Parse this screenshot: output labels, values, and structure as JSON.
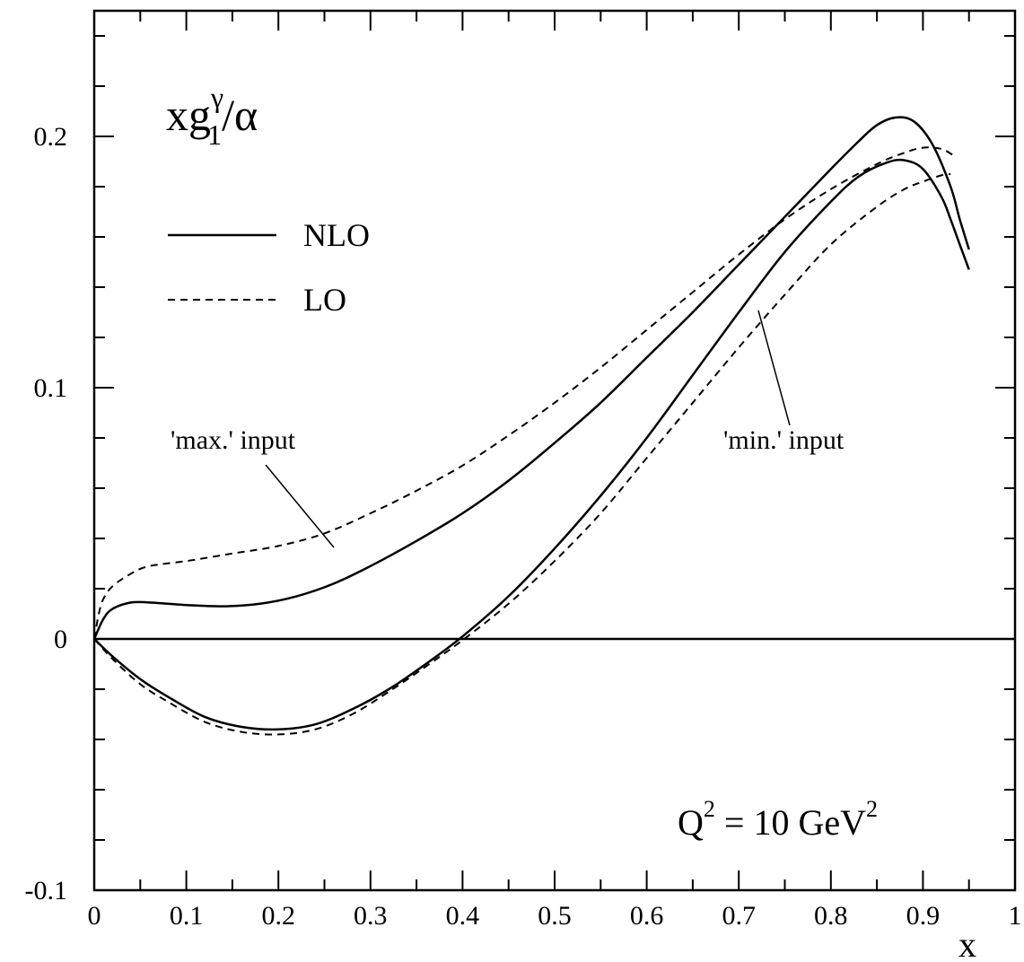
{
  "chart_data": {
    "type": "line",
    "title": "",
    "ylabel": {
      "main": "xg",
      "sup": "γ",
      "sub": "1",
      "tail": "/α"
    },
    "xlabel": "x",
    "xlim": [
      0,
      1
    ],
    "ylim": [
      -0.1,
      0.25
    ],
    "x_tick_labels": [
      "0",
      "0.1",
      "0.2",
      "0.3",
      "0.4",
      "0.5",
      "0.6",
      "0.7",
      "0.8",
      "0.9",
      "1"
    ],
    "x_tick_values": [
      0,
      0.1,
      0.2,
      0.3,
      0.4,
      0.5,
      0.6,
      0.7,
      0.8,
      0.9,
      1.0
    ],
    "y_tick_labels": [
      "-0.1",
      "0",
      "0.1",
      "0.2"
    ],
    "y_tick_values": [
      -0.1,
      0,
      0.1,
      0.2
    ],
    "grid": false,
    "legend": {
      "position": "top-left",
      "entries": [
        {
          "label": "NLO",
          "style": "solid"
        },
        {
          "label": "LO",
          "style": "dashed"
        }
      ]
    },
    "annotations": {
      "max_input": "'max.' input",
      "min_input": "'min.' input",
      "q2": {
        "main": "Q",
        "sup1": "2",
        "mid": " = 10 GeV",
        "sup2": "2"
      }
    },
    "series": [
      {
        "group": "max",
        "style": "solid",
        "points": [
          [
            0,
            0
          ],
          [
            0.01,
            0.008
          ],
          [
            0.02,
            0.012
          ],
          [
            0.04,
            0.0145
          ],
          [
            0.06,
            0.0145
          ],
          [
            0.1,
            0.0135
          ],
          [
            0.14,
            0.013
          ],
          [
            0.18,
            0.014
          ],
          [
            0.22,
            0.017
          ],
          [
            0.26,
            0.022
          ],
          [
            0.3,
            0.029
          ],
          [
            0.35,
            0.039
          ],
          [
            0.4,
            0.05
          ],
          [
            0.45,
            0.063
          ],
          [
            0.5,
            0.078
          ],
          [
            0.55,
            0.094
          ],
          [
            0.6,
            0.112
          ],
          [
            0.65,
            0.13
          ],
          [
            0.7,
            0.149
          ],
          [
            0.75,
            0.168
          ],
          [
            0.8,
            0.187
          ],
          [
            0.83,
            0.198
          ],
          [
            0.85,
            0.2045
          ],
          [
            0.87,
            0.2075
          ],
          [
            0.89,
            0.206
          ],
          [
            0.91,
            0.197
          ],
          [
            0.93,
            0.18
          ],
          [
            0.94,
            0.167
          ],
          [
            0.95,
            0.155
          ]
        ]
      },
      {
        "group": "max",
        "style": "dashed",
        "points": [
          [
            0,
            0
          ],
          [
            0.005,
            0.01
          ],
          [
            0.01,
            0.016
          ],
          [
            0.02,
            0.021
          ],
          [
            0.04,
            0.026
          ],
          [
            0.06,
            0.029
          ],
          [
            0.1,
            0.031
          ],
          [
            0.15,
            0.034
          ],
          [
            0.2,
            0.037
          ],
          [
            0.25,
            0.042
          ],
          [
            0.3,
            0.05
          ],
          [
            0.35,
            0.059
          ],
          [
            0.4,
            0.069
          ],
          [
            0.45,
            0.081
          ],
          [
            0.5,
            0.094
          ],
          [
            0.55,
            0.108
          ],
          [
            0.6,
            0.123
          ],
          [
            0.65,
            0.138
          ],
          [
            0.7,
            0.153
          ],
          [
            0.75,
            0.167
          ],
          [
            0.8,
            0.179
          ],
          [
            0.85,
            0.189
          ],
          [
            0.88,
            0.1935
          ],
          [
            0.9,
            0.1955
          ],
          [
            0.92,
            0.195
          ],
          [
            0.935,
            0.192
          ]
        ]
      },
      {
        "group": "min",
        "style": "solid",
        "points": [
          [
            0,
            0
          ],
          [
            0.02,
            -0.007
          ],
          [
            0.05,
            -0.016
          ],
          [
            0.08,
            -0.023
          ],
          [
            0.12,
            -0.031
          ],
          [
            0.16,
            -0.035
          ],
          [
            0.2,
            -0.036
          ],
          [
            0.24,
            -0.034
          ],
          [
            0.28,
            -0.028
          ],
          [
            0.32,
            -0.02
          ],
          [
            0.36,
            -0.01
          ],
          [
            0.4,
            0.001
          ],
          [
            0.45,
            0.017
          ],
          [
            0.5,
            0.036
          ],
          [
            0.55,
            0.057
          ],
          [
            0.6,
            0.08
          ],
          [
            0.65,
            0.105
          ],
          [
            0.7,
            0.13
          ],
          [
            0.75,
            0.154
          ],
          [
            0.8,
            0.174
          ],
          [
            0.83,
            0.184
          ],
          [
            0.86,
            0.1895
          ],
          [
            0.88,
            0.1905
          ],
          [
            0.9,
            0.187
          ],
          [
            0.92,
            0.176
          ],
          [
            0.93,
            0.167
          ],
          [
            0.94,
            0.157
          ],
          [
            0.95,
            0.147
          ]
        ]
      },
      {
        "group": "min",
        "style": "dashed",
        "points": [
          [
            0,
            0
          ],
          [
            0.02,
            -0.008
          ],
          [
            0.05,
            -0.018
          ],
          [
            0.08,
            -0.025
          ],
          [
            0.12,
            -0.033
          ],
          [
            0.16,
            -0.037
          ],
          [
            0.2,
            -0.038
          ],
          [
            0.24,
            -0.036
          ],
          [
            0.28,
            -0.03
          ],
          [
            0.32,
            -0.021
          ],
          [
            0.36,
            -0.011
          ],
          [
            0.4,
            -0.0005
          ],
          [
            0.45,
            0.014
          ],
          [
            0.5,
            0.031
          ],
          [
            0.55,
            0.05
          ],
          [
            0.6,
            0.072
          ],
          [
            0.65,
            0.094
          ],
          [
            0.7,
            0.116
          ],
          [
            0.75,
            0.137
          ],
          [
            0.8,
            0.157
          ],
          [
            0.85,
            0.172
          ],
          [
            0.88,
            0.179
          ],
          [
            0.9,
            0.182
          ],
          [
            0.92,
            0.1845
          ],
          [
            0.93,
            0.185
          ]
        ]
      }
    ]
  }
}
